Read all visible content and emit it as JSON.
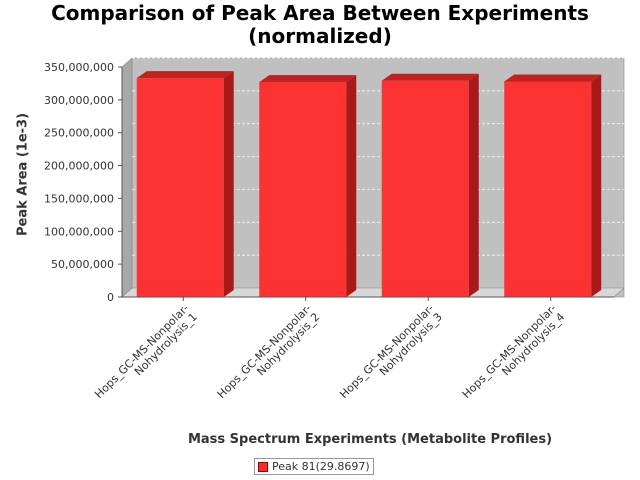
{
  "chart_data": {
    "type": "bar",
    "title": "Comparison of Peak Area Between Experiments (normalized)",
    "xlabel": "Mass Spectrum Experiments (Metabolite Profiles)",
    "ylabel": "Peak Area (1e-3)",
    "categories": [
      "Hops_GC-MS-Nonpolar-Nohydrolysis_1",
      "Hops_GC-MS-Nonpolar-Nohydrolysis_2",
      "Hops_GC-MS-Nonpolar-Nohydrolysis_3",
      "Hops_GC-MS-Nonpolar-Nohydrolysis_4"
    ],
    "category_lines": [
      [
        "Hops_GC-MS-Nonpolar-",
        "Nohydrolysis_1"
      ],
      [
        "Hops_GC-MS-Nonpolar-",
        "Nohydrolysis_2"
      ],
      [
        "Hops_GC-MS-Nonpolar-",
        "Nohydrolysis_3"
      ],
      [
        "Hops_GC-MS-Nonpolar-",
        "Nohydrolysis_4"
      ]
    ],
    "series": [
      {
        "name": "Peak 81(29.8697)",
        "values": [
          333000000,
          327000000,
          329000000,
          328000000
        ],
        "color": "#ff2a2a"
      }
    ],
    "ylim": [
      0,
      350000000
    ],
    "yticks": [
      0,
      50000000,
      100000000,
      150000000,
      200000000,
      250000000,
      300000000,
      350000000
    ],
    "ytick_labels": [
      "0",
      "50,000,000",
      "100,000,000",
      "150,000,000",
      "200,000,000",
      "250,000,000",
      "300,000,000",
      "350,000,000"
    ],
    "grid": true,
    "legend_position": "bottom-center",
    "plot_background": "#c0c0c0",
    "bar_color": "#ff2a2a"
  }
}
